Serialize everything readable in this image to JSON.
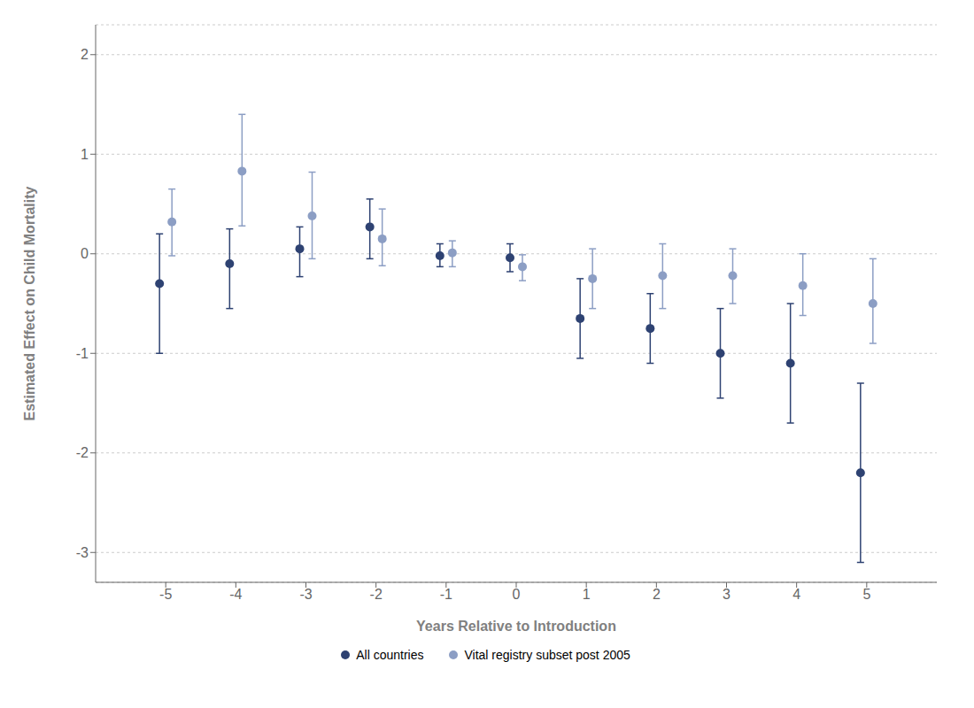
{
  "chart_data": {
    "type": "scatter",
    "xlabel": "Years Relative to Introduction",
    "ylabel": "Estimated Effect on Child Mortality",
    "x": [
      -5,
      -4,
      -3,
      -2,
      -1,
      0,
      1,
      2,
      3,
      4,
      5
    ],
    "series": [
      {
        "name": "All countries",
        "color": "#2e4272",
        "marker": "circle",
        "values": [
          -0.3,
          -0.1,
          0.05,
          0.27,
          -0.02,
          -0.04,
          -0.65,
          -0.75,
          -1.0,
          -1.1,
          -2.2
        ],
        "y_lo": [
          -1.0,
          -0.55,
          -0.23,
          -0.05,
          -0.13,
          -0.18,
          -1.05,
          -1.1,
          -1.45,
          -1.7,
          -3.1
        ],
        "y_hi": [
          0.2,
          0.25,
          0.27,
          0.55,
          0.1,
          0.1,
          -0.25,
          -0.4,
          -0.55,
          -0.5,
          -1.3
        ]
      },
      {
        "name": "Vital registry subset post 2005",
        "color": "#8c9ec4",
        "marker": "circle",
        "values": [
          0.32,
          0.83,
          0.38,
          0.15,
          0.01,
          -0.13,
          -0.25,
          -0.22,
          -0.22,
          -0.32,
          -0.5
        ],
        "y_lo": [
          -0.02,
          0.28,
          -0.05,
          -0.12,
          -0.13,
          -0.27,
          -0.55,
          -0.55,
          -0.5,
          -0.62,
          -0.9
        ],
        "y_hi": [
          0.65,
          1.4,
          0.82,
          0.45,
          0.13,
          -0.01,
          0.05,
          0.1,
          0.05,
          0.0,
          -0.05
        ]
      }
    ],
    "xlim": [
      -6,
      6
    ],
    "ylim": [
      -3.3,
      2.3
    ],
    "xticks": [
      -5,
      -4,
      -3,
      -2,
      -1,
      0,
      1,
      2,
      3,
      4,
      5
    ],
    "yticks": [
      -3,
      -2,
      -1,
      0,
      1,
      2
    ],
    "grid": true,
    "legend": "bottom"
  }
}
